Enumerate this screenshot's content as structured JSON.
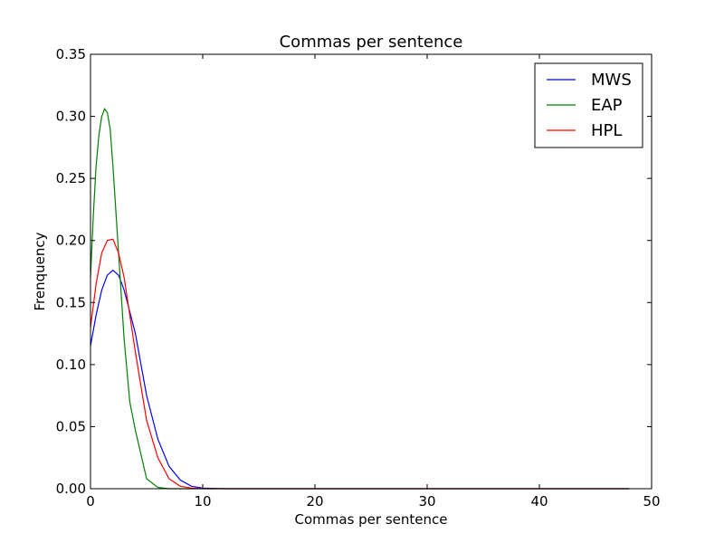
{
  "chart_data": {
    "type": "line",
    "title": "Commas per sentence",
    "xlabel": "Commas per sentence",
    "ylabel": "Frenquency",
    "xlim": [
      0,
      50
    ],
    "ylim": [
      0,
      0.35
    ],
    "xticks": [
      "0",
      "10",
      "20",
      "30",
      "40",
      "50"
    ],
    "yticks": [
      "0.00",
      "0.05",
      "0.10",
      "0.15",
      "0.20",
      "0.25",
      "0.30",
      "0.35"
    ],
    "grid": false,
    "legend": "top-right",
    "series": [
      {
        "name": "MWS",
        "color": "#0000ff",
        "x": [
          0,
          0.5,
          1,
          1.5,
          2,
          2.5,
          3,
          4,
          5,
          6,
          7,
          8,
          9,
          10,
          12,
          20,
          30,
          48
        ],
        "y": [
          0.115,
          0.14,
          0.16,
          0.172,
          0.176,
          0.172,
          0.16,
          0.125,
          0.075,
          0.04,
          0.018,
          0.007,
          0.002,
          0.0005,
          0,
          0,
          0,
          0
        ]
      },
      {
        "name": "EAP",
        "color": "#008000",
        "x": [
          0,
          0.25,
          0.5,
          0.75,
          1,
          1.25,
          1.5,
          1.75,
          2,
          2.5,
          3,
          3.5,
          4,
          5,
          6,
          7,
          10,
          20,
          48
        ],
        "y": [
          0.17,
          0.22,
          0.26,
          0.285,
          0.3,
          0.306,
          0.303,
          0.29,
          0.26,
          0.19,
          0.12,
          0.07,
          0.047,
          0.008,
          0.001,
          0,
          0,
          0,
          0
        ]
      },
      {
        "name": "HPL",
        "color": "#ff0000",
        "x": [
          0,
          0.5,
          1,
          1.5,
          2,
          2.5,
          3,
          4,
          5,
          6,
          7,
          8,
          9,
          10,
          20,
          48
        ],
        "y": [
          0.13,
          0.165,
          0.19,
          0.2,
          0.201,
          0.19,
          0.17,
          0.11,
          0.055,
          0.025,
          0.008,
          0.002,
          0.0005,
          0,
          0,
          0
        ]
      }
    ]
  }
}
